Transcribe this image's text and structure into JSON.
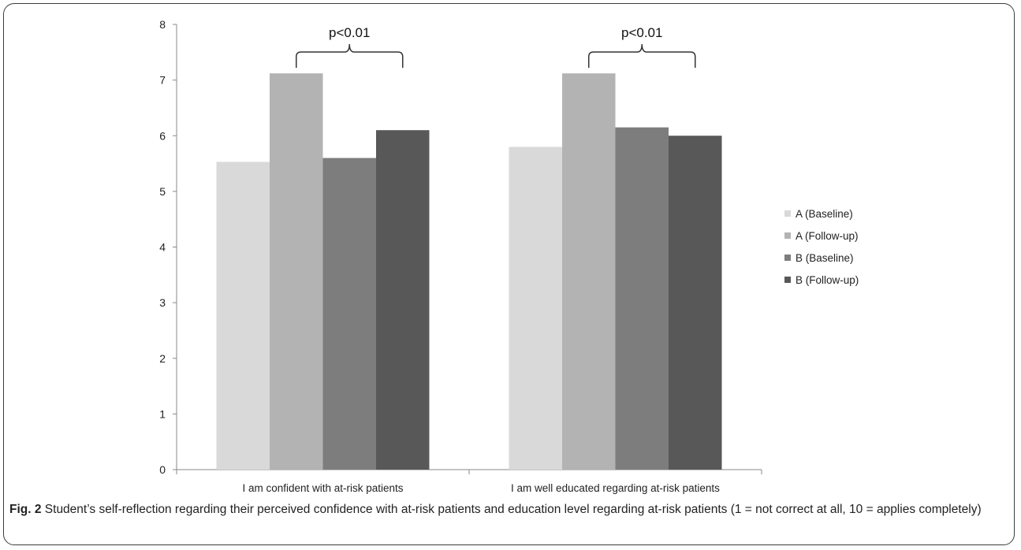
{
  "figure": {
    "label": "Fig. 2",
    "caption": "Student’s self-reflection regarding their perceived confidence with at-risk patients and education level regarding at-risk patients (1 = not correct at all, 10 = applies completely)"
  },
  "chart_data": {
    "type": "bar",
    "categories": [
      "I am confident with at-risk patients",
      "I am well educated regarding at-risk patients"
    ],
    "series": [
      {
        "name": "A (Baseline)",
        "values": [
          5.53,
          5.8
        ],
        "color": "#d9d9d9"
      },
      {
        "name": "A (Follow-up)",
        "values": [
          7.12,
          7.12
        ],
        "color": "#b3b3b3"
      },
      {
        "name": "B (Baseline)",
        "values": [
          5.6,
          6.15
        ],
        "color": "#7d7d7d"
      },
      {
        "name": "B (Follow-up)",
        "values": [
          6.1,
          6.0
        ],
        "color": "#585858"
      }
    ],
    "ylim": [
      0,
      8
    ],
    "yticks": [
      "0",
      "1",
      "2",
      "3",
      "4",
      "5",
      "6",
      "7",
      "8"
    ],
    "legend_position": "right",
    "grid": false,
    "annotations": [
      {
        "text": "p<0.01",
        "category_index": 0
      },
      {
        "text": "p<0.01",
        "category_index": 1
      }
    ]
  }
}
